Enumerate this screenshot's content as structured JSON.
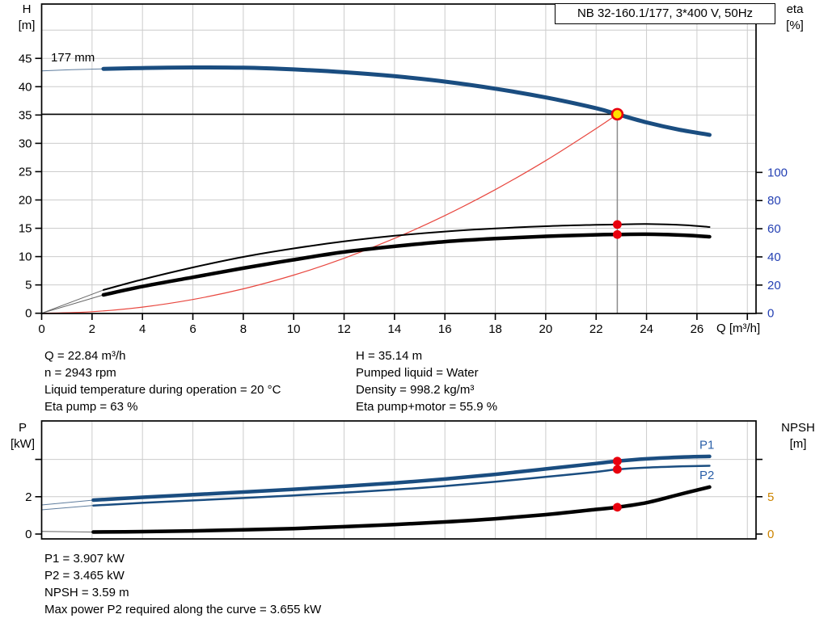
{
  "title_box": {
    "label": "NB 32-160.1/177, 3*400 V, 50Hz"
  },
  "axis_headers": {
    "top_left": [
      "H",
      "[m]"
    ],
    "top_right": [
      "eta",
      "[%]"
    ],
    "bottom_left": [
      "P",
      "[kW]"
    ],
    "bottom_right": [
      "NPSH",
      "[m]"
    ],
    "x_unit": "Q [m³/h]"
  },
  "info_mid_left": [
    "Q = 22.84 m³/h",
    "n = 2943 rpm",
    "Liquid temperature during operation = 20 °C",
    "Eta pump = 63 %"
  ],
  "info_mid_right": [
    "H = 35.14 m",
    "Pumped liquid = Water",
    "Density = 998.2 kg/m³",
    "Eta pump+motor = 55.9 %"
  ],
  "info_bottom": [
    "P1 = 3.907 kW",
    "P2 = 3.465 kW",
    "NPSH = 3.59 m",
    "Max power P2 required along the curve = 3.655 kW"
  ],
  "colors": {
    "curve_blue": "#1a4d80",
    "curve_black": "#000000",
    "system_curve_red": "#e8473f",
    "duty_fill_yellow": "#ffe000",
    "duty_ring_red": "#e8000d",
    "dot_red": "#e8000d",
    "eta_tick_blue": "#2440b3",
    "npsh_tick_orange": "#cc8400",
    "p_label_blue": "#2a5fa8",
    "grid_gray": "#cccccc",
    "duty_line_gray": "#8c8c8c"
  },
  "chart_data": [
    {
      "type": "line",
      "name": "qh-eta-chart",
      "title": "Pump curve NB 32-160.1/177",
      "xlabel": "Q [m³/h]",
      "ylabel_left": "H [m]",
      "ylabel_right": "eta [%]",
      "xlim": [
        0,
        28.3
      ],
      "ylim_left": [
        0,
        54.6
      ],
      "ylim_right": [
        0,
        100
      ],
      "grid": true,
      "left_tick_color": "#000000",
      "right_tick_color": "#2440b3",
      "x_ticks": [
        {
          "v": 0,
          "label": "0"
        },
        {
          "v": 2,
          "label": "2"
        },
        {
          "v": 4,
          "label": "4"
        },
        {
          "v": 6,
          "label": "6"
        },
        {
          "v": 8,
          "label": "8"
        },
        {
          "v": 10,
          "label": "10"
        },
        {
          "v": 12,
          "label": "12"
        },
        {
          "v": 14,
          "label": "14"
        },
        {
          "v": 16,
          "label": "16"
        },
        {
          "v": 18,
          "label": "18"
        },
        {
          "v": 20,
          "label": "20"
        },
        {
          "v": 22,
          "label": "22"
        },
        {
          "v": 24,
          "label": "24"
        },
        {
          "v": 26,
          "label": "26"
        },
        {
          "v": 28,
          "label": ""
        }
      ],
      "y_ticks_left": [
        {
          "v": 0,
          "label": "0"
        },
        {
          "v": 5,
          "label": "5"
        },
        {
          "v": 10,
          "label": "10"
        },
        {
          "v": 15,
          "label": "15"
        },
        {
          "v": 20,
          "label": "20"
        },
        {
          "v": 25,
          "label": "25"
        },
        {
          "v": 30,
          "label": "30"
        },
        {
          "v": 35,
          "label": "35"
        },
        {
          "v": 40,
          "label": "40"
        },
        {
          "v": 45,
          "label": "45"
        }
      ],
      "y_ticks_right": [
        {
          "v": 0,
          "label": "0"
        },
        {
          "v": 20,
          "label": "20"
        },
        {
          "v": 40,
          "label": "40"
        },
        {
          "v": 60,
          "label": "60"
        },
        {
          "v": 80,
          "label": "80"
        },
        {
          "v": 100,
          "label": "100"
        }
      ],
      "x_grid": [
        2,
        4,
        6,
        8,
        10,
        12,
        14,
        16,
        18,
        20,
        22,
        24,
        26,
        28
      ],
      "y_grid_left": [
        5,
        10,
        15,
        20,
        25,
        30,
        35,
        40,
        45,
        50
      ],
      "ref_lines": [
        {
          "name": "duty-head-line",
          "orient": "h",
          "v": 35.14,
          "q1": 0,
          "q2": 22.84,
          "color": "#000000",
          "width": 1.5
        },
        {
          "name": "duty-flow-line",
          "orient": "v",
          "q": 22.84,
          "v1": 35.14,
          "color": "#8c8c8c",
          "width": 1.5
        }
      ],
      "series": [
        {
          "name": "system-curve",
          "axis": "left",
          "color": "#e8473f",
          "width": 1.2,
          "points": [
            [
              0,
              0
            ],
            [
              2,
              0.27
            ],
            [
              4,
              1.08
            ],
            [
              6,
              2.43
            ],
            [
              8,
              4.31
            ],
            [
              10,
              6.74
            ],
            [
              12,
              9.7
            ],
            [
              14,
              13.21
            ],
            [
              16,
              17.25
            ],
            [
              18,
              21.83
            ],
            [
              20,
              26.95
            ],
            [
              22,
              32.61
            ],
            [
              22.84,
              35.14
            ]
          ]
        },
        {
          "name": "head-lead-in",
          "axis": "left",
          "color": "#5f7d9e",
          "width": 1,
          "points": [
            [
              0,
              42.8
            ],
            [
              1.2,
              43.0
            ],
            [
              2.45,
              43.15
            ]
          ]
        },
        {
          "name": "head-177mm",
          "axis": "left",
          "color": "#1a4d80",
          "width": 5,
          "points": [
            [
              2.45,
              43.15
            ],
            [
              4,
              43.3
            ],
            [
              6,
              43.4
            ],
            [
              8,
              43.35
            ],
            [
              10,
              43.05
            ],
            [
              12,
              42.55
            ],
            [
              14,
              41.85
            ],
            [
              16,
              40.9
            ],
            [
              18,
              39.65
            ],
            [
              20,
              38.1
            ],
            [
              22,
              36.2
            ],
            [
              22.84,
              35.14
            ],
            [
              24,
              33.7
            ],
            [
              25.3,
              32.4
            ],
            [
              26.5,
              31.5
            ]
          ]
        },
        {
          "name": "eta-pump-lead-in",
          "axis": "right",
          "color": "#666666",
          "width": 1,
          "points": [
            [
              0,
              0
            ],
            [
              2.45,
              16.5
            ]
          ]
        },
        {
          "name": "eta-pump",
          "axis": "right",
          "color": "#000000",
          "width": 2,
          "points": [
            [
              2.45,
              16.5
            ],
            [
              4,
              24
            ],
            [
              6,
              32.5
            ],
            [
              8,
              40
            ],
            [
              10,
              46
            ],
            [
              12,
              51
            ],
            [
              14,
              55
            ],
            [
              16,
              58
            ],
            [
              18,
              60.2
            ],
            [
              20,
              61.8
            ],
            [
              22,
              62.8
            ],
            [
              22.84,
              63
            ],
            [
              24,
              63.3
            ],
            [
              25.5,
              62.6
            ],
            [
              26.5,
              61.2
            ]
          ]
        },
        {
          "name": "eta-pump-motor-lead-in",
          "axis": "right",
          "color": "#666666",
          "width": 1,
          "points": [
            [
              0,
              0
            ],
            [
              2.45,
              13
            ]
          ]
        },
        {
          "name": "eta-pump-motor",
          "axis": "right",
          "color": "#000000",
          "width": 4.5,
          "points": [
            [
              2.45,
              13
            ],
            [
              4,
              19
            ],
            [
              6,
              25.5
            ],
            [
              8,
              32
            ],
            [
              10,
              38
            ],
            [
              12,
              43.5
            ],
            [
              14,
              47.5
            ],
            [
              16,
              50.8
            ],
            [
              18,
              53
            ],
            [
              20,
              54.6
            ],
            [
              22,
              55.7
            ],
            [
              22.84,
              55.9
            ],
            [
              24,
              56.1
            ],
            [
              25.5,
              55.4
            ],
            [
              26.5,
              54.3
            ]
          ]
        }
      ],
      "markers": [
        {
          "q": 22.84,
          "v": 35.14,
          "axis": "left",
          "kind": "duty"
        },
        {
          "q": 22.84,
          "v": 63,
          "axis": "right",
          "kind": "dot"
        },
        {
          "q": 22.84,
          "v": 55.9,
          "axis": "right",
          "kind": "dot"
        }
      ],
      "annotations": [
        {
          "text": "177 mm",
          "q": 0.37,
          "v": 45.2,
          "axis": "left",
          "anchor": "start",
          "color": "#000000"
        }
      ],
      "duty_point": {
        "Q": 22.84,
        "H": 35.14,
        "eta_pump": 63,
        "eta_pump_motor": 55.9
      }
    },
    {
      "type": "line",
      "name": "power-npsh-chart",
      "title": "Power / NPSH curves",
      "xlabel": "Q [m³/h]",
      "ylabel_left": "P [kW]",
      "ylabel_right": "NPSH [m]",
      "xlim": [
        0,
        28.3
      ],
      "ylim_left": [
        0,
        6.3
      ],
      "ylim_right": [
        0,
        15.8
      ],
      "grid": true,
      "left_tick_color": "#000000",
      "right_tick_color": "#cc8400",
      "x_ticks": [],
      "y_ticks_left": [
        {
          "v": 0,
          "label": "0"
        },
        {
          "v": 2,
          "label": "2"
        },
        {
          "v": 4,
          "label": ""
        }
      ],
      "y_ticks_right": [
        {
          "v": 0,
          "label": "0"
        },
        {
          "v": 5,
          "label": "5"
        },
        {
          "v": 10,
          "label": ""
        }
      ],
      "x_grid": [
        2,
        4,
        6,
        8,
        10,
        12,
        14,
        16,
        18,
        20,
        22,
        24,
        26,
        28
      ],
      "y_grid_left": [
        2,
        4
      ],
      "ref_lines": [],
      "series": [
        {
          "name": "p1-lead-in",
          "axis": "left",
          "color": "#5f7d9e",
          "width": 1,
          "points": [
            [
              0,
              1.56
            ],
            [
              2.05,
              1.82
            ]
          ]
        },
        {
          "name": "p1-power",
          "axis": "left",
          "color": "#1a4d80",
          "width": 4.5,
          "points": [
            [
              2.05,
              1.82
            ],
            [
              4,
              1.97
            ],
            [
              6,
              2.11
            ],
            [
              8,
              2.25
            ],
            [
              10,
              2.4
            ],
            [
              12,
              2.56
            ],
            [
              14,
              2.74
            ],
            [
              16,
              2.95
            ],
            [
              18,
              3.2
            ],
            [
              20,
              3.49
            ],
            [
              22,
              3.78
            ],
            [
              22.84,
              3.907
            ],
            [
              24,
              4.03
            ],
            [
              25.5,
              4.13
            ],
            [
              26.5,
              4.16
            ]
          ]
        },
        {
          "name": "p2-lead-in",
          "axis": "left",
          "color": "#5f7d9e",
          "width": 1,
          "points": [
            [
              0,
              1.3
            ],
            [
              2.05,
              1.53
            ]
          ]
        },
        {
          "name": "p2-power",
          "axis": "left",
          "color": "#1a4d80",
          "width": 2.5,
          "points": [
            [
              2.05,
              1.53
            ],
            [
              4,
              1.67
            ],
            [
              6,
              1.8
            ],
            [
              8,
              1.93
            ],
            [
              10,
              2.07
            ],
            [
              12,
              2.22
            ],
            [
              14,
              2.38
            ],
            [
              16,
              2.57
            ],
            [
              18,
              2.8
            ],
            [
              20,
              3.06
            ],
            [
              22,
              3.33
            ],
            [
              22.84,
              3.465
            ],
            [
              24,
              3.56
            ],
            [
              25.5,
              3.63
            ],
            [
              26.5,
              3.66
            ]
          ]
        },
        {
          "name": "npsh-lead-in",
          "axis": "right",
          "color": "#666666",
          "width": 1,
          "points": [
            [
              0,
              0.35
            ],
            [
              2.05,
              0.27
            ]
          ]
        },
        {
          "name": "npsh",
          "axis": "right",
          "color": "#000000",
          "width": 4.5,
          "points": [
            [
              2.05,
              0.27
            ],
            [
              4,
              0.32
            ],
            [
              6,
              0.42
            ],
            [
              8,
              0.56
            ],
            [
              10,
              0.74
            ],
            [
              12,
              0.98
            ],
            [
              14,
              1.28
            ],
            [
              16,
              1.62
            ],
            [
              18,
              2.05
            ],
            [
              20,
              2.6
            ],
            [
              22,
              3.3
            ],
            [
              22.84,
              3.59
            ],
            [
              24,
              4.2
            ],
            [
              25.3,
              5.3
            ],
            [
              26.5,
              6.3
            ]
          ]
        }
      ],
      "markers": [
        {
          "q": 22.84,
          "v": 3.907,
          "axis": "left",
          "kind": "dot"
        },
        {
          "q": 22.84,
          "v": 3.465,
          "axis": "left",
          "kind": "dot"
        },
        {
          "q": 22.84,
          "v": 3.59,
          "axis": "right",
          "kind": "dot"
        }
      ],
      "annotations": [
        {
          "text": "P1",
          "q": 26.1,
          "v": 4.78,
          "axis": "left",
          "anchor": "start",
          "color": "#2a5fa8"
        },
        {
          "text": "P2",
          "q": 26.1,
          "v": 3.17,
          "axis": "left",
          "anchor": "start",
          "color": "#2a5fa8"
        }
      ],
      "duty_point": {
        "Q": 22.84,
        "P1": 3.907,
        "P2": 3.465,
        "NPSH": 3.59
      }
    }
  ]
}
